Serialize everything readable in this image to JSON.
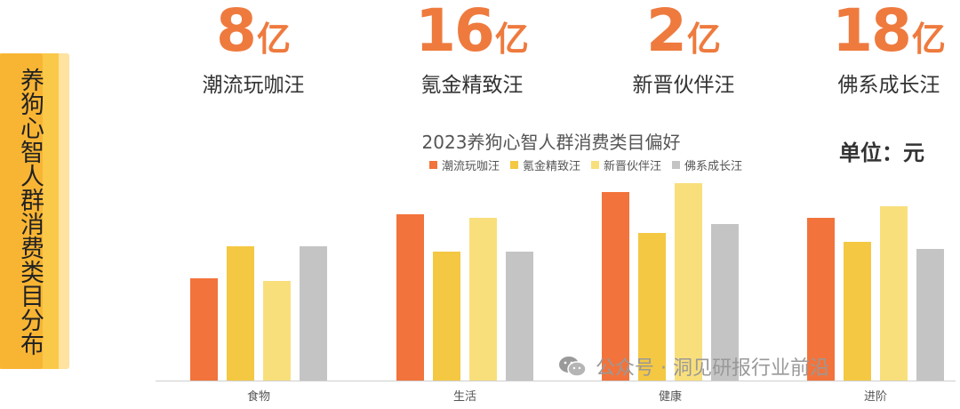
{
  "side_label": "养狗心智人群消费类目分布",
  "kpis": [
    {
      "value": "8",
      "unit": "亿",
      "name": "潮流玩咖汪"
    },
    {
      "value": "16",
      "unit": "亿",
      "name": "氪金精致汪"
    },
    {
      "value": "2",
      "unit": "亿",
      "name": "新晋伙伴汪"
    },
    {
      "value": "18",
      "unit": "亿",
      "name": "佛系成长汪"
    }
  ],
  "unit_label": "单位：元",
  "watermark": "公众号 · 洞见研报行业前沿",
  "colors": {
    "series": [
      "#f2733b",
      "#f4c842",
      "#f9df7c",
      "#c4c4c4"
    ],
    "kpi": "#ef7a3e",
    "axis": "#cfcfcf"
  },
  "chart_data": {
    "type": "bar",
    "title": "2023养狗心智人群消费类目偏好",
    "categories": [
      "食物",
      "生活",
      "健康",
      "进阶"
    ],
    "series": [
      {
        "name": "潮流玩咖汪",
        "values": [
          115,
          187,
          212,
          183
        ]
      },
      {
        "name": "氪金精致汪",
        "values": [
          151,
          145,
          166,
          156
        ]
      },
      {
        "name": "新晋伙伴汪",
        "values": [
          112,
          183,
          222,
          196
        ]
      },
      {
        "name": "佛系成长汪",
        "values": [
          151,
          145,
          176,
          148
        ]
      }
    ],
    "ylim": [
      0,
      230
    ],
    "grid": false,
    "legend_position": "top"
  }
}
